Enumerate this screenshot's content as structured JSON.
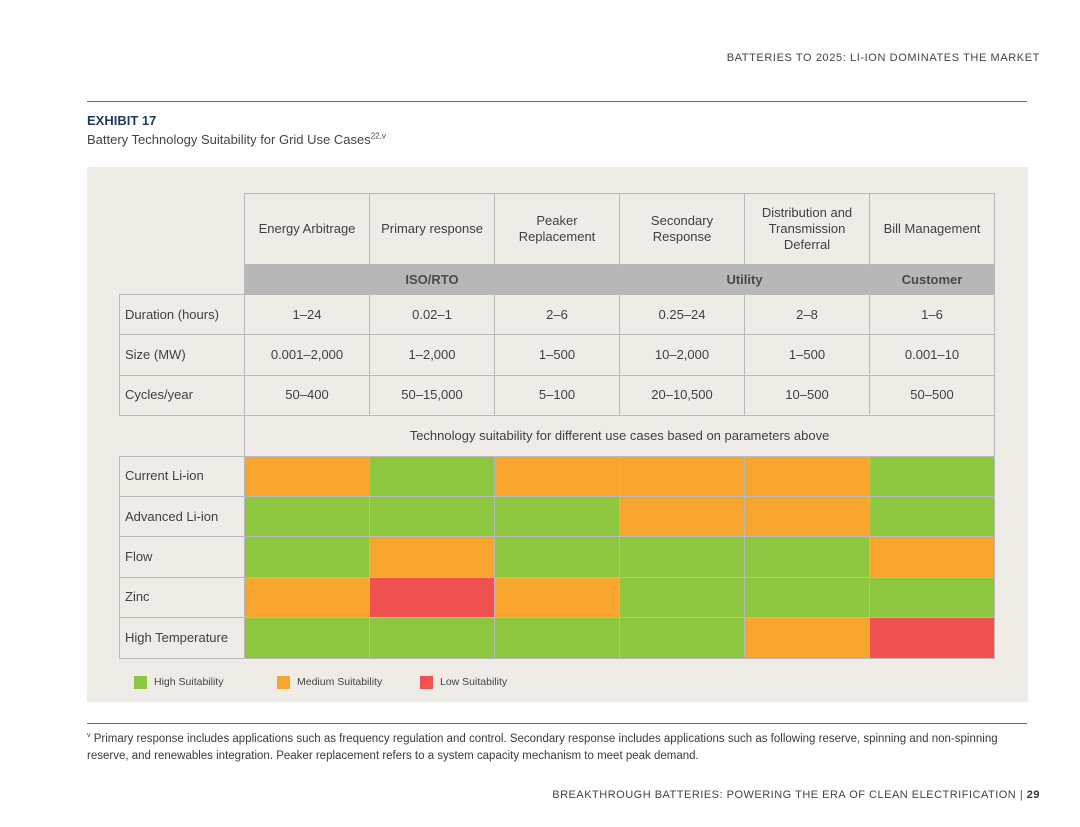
{
  "header": {
    "running_title": "BATTERIES TO 2025: LI-ION DOMINATES THE MARKET"
  },
  "exhibit": {
    "label": "EXHIBIT 17",
    "title": "Battery Technology Suitability for Grid Use Cases",
    "title_superscript": "22,v"
  },
  "table": {
    "columns": [
      "Energy Arbitrage",
      "Primary response",
      "Peaker Replacement",
      "Secondary Response",
      "Distribution and Transmission Deferral",
      "Bill Management"
    ],
    "groups": [
      {
        "label": "ISO/RTO",
        "span": 3
      },
      {
        "label": "Utility",
        "span": 2
      },
      {
        "label": "Customer",
        "span": 1
      }
    ],
    "parameter_rows": [
      {
        "label": "Duration (hours)",
        "values": [
          "1–24",
          "0.02–1",
          "2–6",
          "0.25–24",
          "2–8",
          "1–6"
        ]
      },
      {
        "label": "Size (MW)",
        "values": [
          "0.001–2,000",
          "1–2,000",
          "1–500",
          "10–2,000",
          "1–500",
          "0.001–10"
        ]
      },
      {
        "label": "Cycles/year",
        "values": [
          "50–400",
          "50–15,000",
          "5–100",
          "20–10,500",
          "10–500",
          "50–500"
        ]
      }
    ],
    "suitability_caption": "Technology suitability for different use cases based on parameters above",
    "technology_rows": [
      {
        "label": "Current Li-ion",
        "ratings": [
          "medium",
          "high",
          "medium",
          "medium",
          "medium",
          "high"
        ]
      },
      {
        "label": "Advanced Li-ion",
        "ratings": [
          "high",
          "high",
          "high",
          "medium",
          "medium",
          "high"
        ]
      },
      {
        "label": "Flow",
        "ratings": [
          "high",
          "medium",
          "high",
          "high",
          "high",
          "medium"
        ]
      },
      {
        "label": "Zinc",
        "ratings": [
          "medium",
          "low",
          "medium",
          "high",
          "high",
          "high"
        ]
      },
      {
        "label": "High Temperature",
        "ratings": [
          "high",
          "high",
          "high",
          "high",
          "medium",
          "low"
        ]
      }
    ]
  },
  "legend": [
    {
      "key": "high",
      "label": "High Suitability",
      "color": "#8dc63f"
    },
    {
      "key": "medium",
      "label": "Medium Suitability",
      "color": "#f8a530"
    },
    {
      "key": "low",
      "label": "Low Suitability",
      "color": "#f05252"
    }
  ],
  "footnote": {
    "marker": "v",
    "text": "Primary response includes applications such as frequency regulation and control. Secondary response includes applications such as following reserve, spinning and non-spinning reserve, and renewables integration. Peaker replacement refers to a system capacity mechanism to meet peak demand."
  },
  "footer": {
    "running_title": "BREAKTHROUGH BATTERIES: POWERING THE ERA OF CLEAN ELECTRIFICATION",
    "separator": " | ",
    "page_number": "29"
  }
}
